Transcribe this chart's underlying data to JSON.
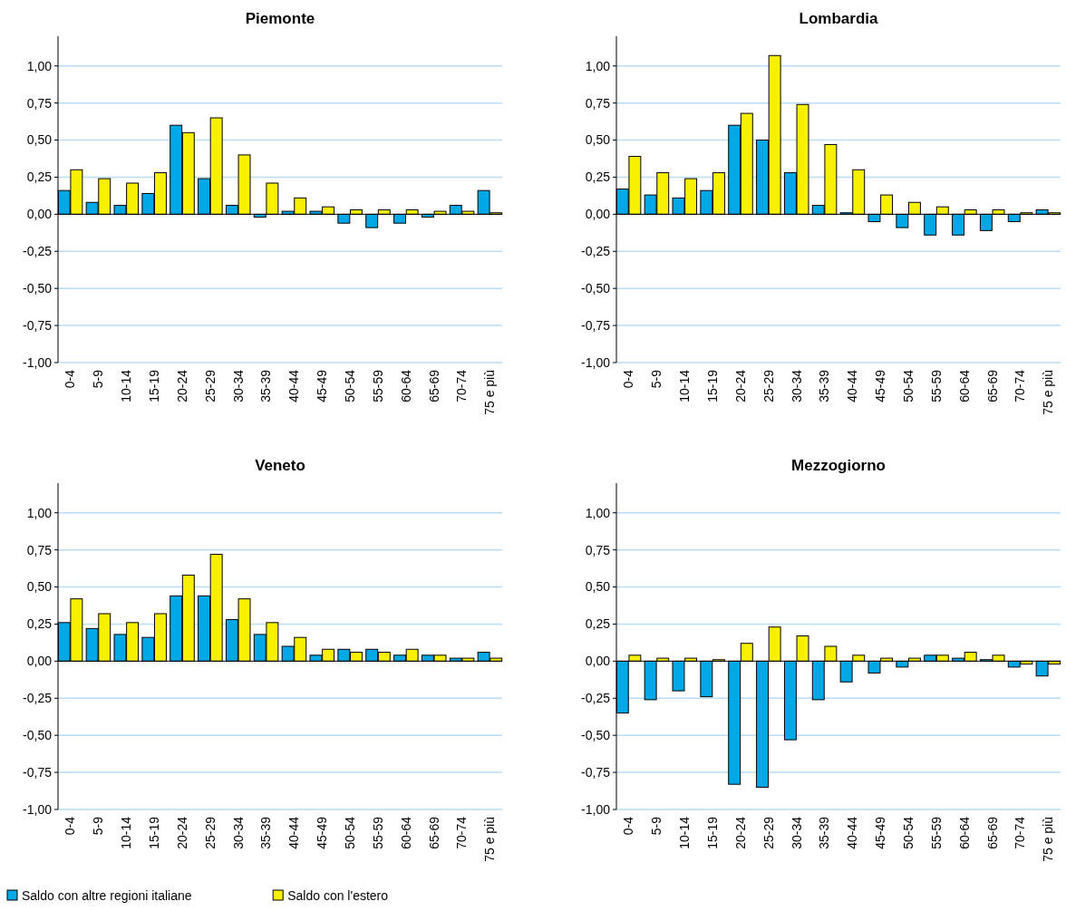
{
  "chart_data": [
    {
      "type": "bar",
      "title": "Piemonte",
      "categories": [
        "0-4",
        "5-9",
        "10-14",
        "15-19",
        "20-24",
        "25-29",
        "30-34",
        "35-39",
        "40-44",
        "45-49",
        "50-54",
        "55-59",
        "60-64",
        "65-69",
        "70-74",
        "75 e più"
      ],
      "series": [
        {
          "color": "#00a8e6",
          "values": [
            0.16,
            0.08,
            0.06,
            0.14,
            0.6,
            0.24,
            0.06,
            -0.02,
            0.02,
            0.02,
            -0.06,
            -0.09,
            -0.06,
            -0.02,
            0.06,
            0.16
          ]
        },
        {
          "color": "#f7f000",
          "values": [
            0.3,
            0.24,
            0.21,
            0.28,
            0.55,
            0.65,
            0.4,
            0.21,
            0.11,
            0.05,
            0.03,
            0.03,
            0.03,
            0.02,
            0.02,
            0.01
          ]
        }
      ],
      "ylim": [
        -1,
        1.2
      ],
      "yticks": [
        {
          "value": -1,
          "label": "-1,00"
        },
        {
          "value": -0.75,
          "label": "-0,75"
        },
        {
          "value": -0.5,
          "label": "-0,50"
        },
        {
          "value": -0.25,
          "label": "-0,25"
        },
        {
          "value": 0,
          "label": "0,00"
        },
        {
          "value": 0.25,
          "label": "0,25"
        },
        {
          "value": 0.5,
          "label": "0,50"
        },
        {
          "value": 0.75,
          "label": "0,75"
        },
        {
          "value": 1,
          "label": "1,00"
        }
      ],
      "grid": "y"
    },
    {
      "type": "bar",
      "title": "Lombardia",
      "categories": [
        "0-4",
        "5-9",
        "10-14",
        "15-19",
        "20-24",
        "25-29",
        "30-34",
        "35-39",
        "40-44",
        "45-49",
        "50-54",
        "55-59",
        "60-64",
        "65-69",
        "70-74",
        "75 e più"
      ],
      "series": [
        {
          "color": "#00a8e6",
          "values": [
            0.17,
            0.13,
            0.11,
            0.16,
            0.6,
            0.5,
            0.28,
            0.06,
            0.01,
            -0.05,
            -0.09,
            -0.14,
            -0.14,
            -0.11,
            -0.05,
            0.03
          ]
        },
        {
          "color": "#f7f000",
          "values": [
            0.39,
            0.28,
            0.24,
            0.28,
            0.68,
            1.07,
            0.74,
            0.47,
            0.3,
            0.13,
            0.08,
            0.05,
            0.03,
            0.03,
            0.01,
            0.01
          ]
        }
      ],
      "ylim": [
        -1,
        1.2
      ],
      "yticks": [
        {
          "value": -1,
          "label": "-1,00"
        },
        {
          "value": -0.75,
          "label": "-0,75"
        },
        {
          "value": -0.5,
          "label": "-0,50"
        },
        {
          "value": -0.25,
          "label": "-0,25"
        },
        {
          "value": 0,
          "label": "0,00"
        },
        {
          "value": 0.25,
          "label": "0,25"
        },
        {
          "value": 0.5,
          "label": "0,50"
        },
        {
          "value": 0.75,
          "label": "0,75"
        },
        {
          "value": 1,
          "label": "1,00"
        }
      ],
      "grid": "y"
    },
    {
      "type": "bar",
      "title": "Veneto",
      "categories": [
        "0-4",
        "5-9",
        "10-14",
        "15-19",
        "20-24",
        "25-29",
        "30-34",
        "35-39",
        "40-44",
        "45-49",
        "50-54",
        "55-59",
        "60-64",
        "65-69",
        "70-74",
        "75 e più"
      ],
      "series": [
        {
          "name": "Saldo con altre regioni italiane",
          "color": "#00a8e6",
          "values": [
            0.26,
            0.22,
            0.18,
            0.16,
            0.44,
            0.44,
            0.28,
            0.18,
            0.1,
            0.04,
            0.08,
            0.08,
            0.04,
            0.04,
            0.02,
            0.06
          ]
        },
        {
          "name": "Saldo con l'estero",
          "color": "#f7f000",
          "values": [
            0.42,
            0.32,
            0.26,
            0.32,
            0.58,
            0.72,
            0.42,
            0.26,
            0.16,
            0.08,
            0.06,
            0.06,
            0.08,
            0.04,
            0.02,
            0.02
          ]
        }
      ],
      "ylim": [
        -1,
        1.2
      ],
      "yticks": [
        {
          "value": -1,
          "label": "-1,00"
        },
        {
          "value": -0.75,
          "label": "-0,75"
        },
        {
          "value": -0.5,
          "label": "-0,50"
        },
        {
          "value": -0.25,
          "label": "-0,25"
        },
        {
          "value": 0,
          "label": "0,00"
        },
        {
          "value": 0.25,
          "label": "0,25"
        },
        {
          "value": 0.5,
          "label": "0,50"
        },
        {
          "value": 0.75,
          "label": "0,75"
        },
        {
          "value": 1,
          "label": "1,00"
        }
      ],
      "grid": "y",
      "legend": "bottom"
    },
    {
      "type": "bar",
      "title": "Mezzogiorno",
      "categories": [
        "0-4",
        "5-9",
        "10-14",
        "15-19",
        "20-24",
        "25-29",
        "30-34",
        "35-39",
        "40-44",
        "45-49",
        "50-54",
        "55-59",
        "60-64",
        "65-69",
        "70-74",
        "75 e più"
      ],
      "series": [
        {
          "color": "#00a8e6",
          "values": [
            -0.35,
            -0.26,
            -0.2,
            -0.24,
            -0.83,
            -0.85,
            -0.53,
            -0.26,
            -0.14,
            -0.08,
            -0.04,
            0.04,
            0.02,
            0.01,
            -0.04,
            -0.1
          ]
        },
        {
          "color": "#f7f000",
          "values": [
            0.04,
            0.02,
            0.02,
            0.01,
            0.12,
            0.23,
            0.17,
            0.1,
            0.04,
            0.02,
            0.02,
            0.04,
            0.06,
            0.04,
            -0.02,
            -0.02
          ]
        }
      ],
      "ylim": [
        -1,
        1.2
      ],
      "yticks": [
        {
          "value": -1,
          "label": "-1,00"
        },
        {
          "value": -0.75,
          "label": "-0,75"
        },
        {
          "value": -0.5,
          "label": "-0,50"
        },
        {
          "value": -0.25,
          "label": "-0,25"
        },
        {
          "value": 0,
          "label": "0,00"
        },
        {
          "value": 0.25,
          "label": "0,25"
        },
        {
          "value": 0.5,
          "label": "0,50"
        },
        {
          "value": 0.75,
          "label": "0,75"
        },
        {
          "value": 1,
          "label": "1,00"
        }
      ],
      "grid": "y"
    }
  ]
}
